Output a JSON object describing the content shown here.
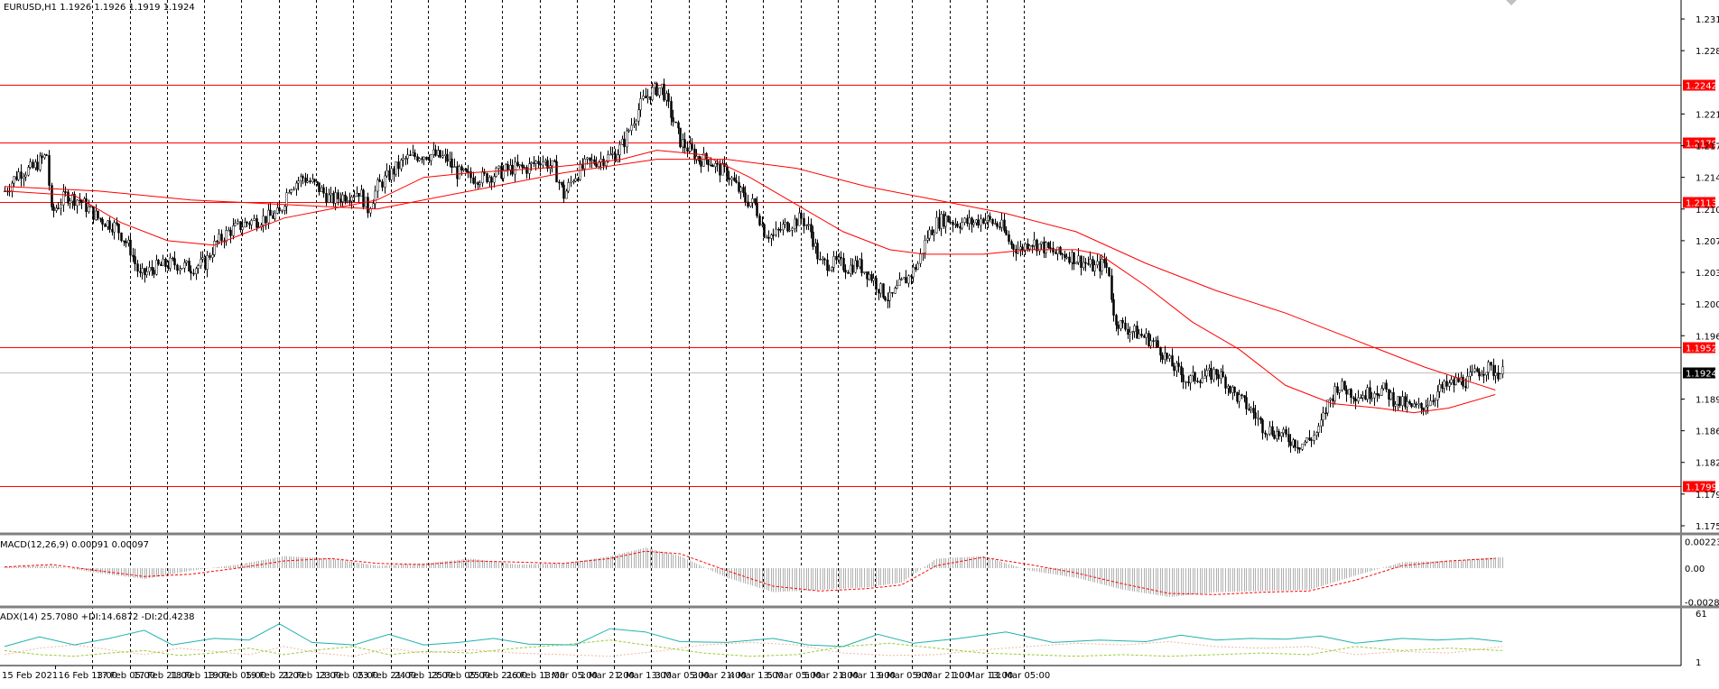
{
  "window": {
    "symbol_header": "EURUSD,H1  1.1926 1.1926 1.1919 1.1924"
  },
  "main_panel": {
    "y_ticks": [
      "1.2315",
      "1.2280",
      "1.2210",
      "1.2175",
      "1.2140",
      "1.2105",
      "1.2070",
      "1.2035",
      "1.2000",
      "1.1965",
      "1.1895",
      "1.1860",
      "1.1825",
      "1.1790",
      "1.1755"
    ],
    "y_tick_values": [
      1.2315,
      1.228,
      1.221,
      1.2175,
      1.214,
      1.2105,
      1.207,
      1.2035,
      1.2,
      1.1965,
      1.1895,
      1.186,
      1.1825,
      1.179,
      1.1755
    ],
    "y_range": [
      1.175,
      1.233
    ],
    "current_price": {
      "label": "1.1924",
      "value": 1.1924,
      "color": "#000000"
    },
    "levels": [
      {
        "label": "1.2242",
        "value": 1.2242
      },
      {
        "label": "1.2179",
        "value": 1.2179
      },
      {
        "label": "1.2113",
        "value": 1.2113
      },
      {
        "label": "1.1952",
        "value": 1.1952
      },
      {
        "label": "1.1799",
        "value": 1.1799
      }
    ],
    "level_color": "#ff0000",
    "candle_color": "#000000",
    "ma_color": "#ff0000"
  },
  "macd_panel": {
    "header": "MACD(12,26,9) 0.00091 0.00097",
    "y_ticks": [
      "0.00223",
      "0.00",
      "-0.00283"
    ],
    "y_tick_values": [
      0.00223,
      0.0,
      -0.00283
    ],
    "y_range": [
      -0.003,
      0.0024
    ]
  },
  "adx_panel": {
    "header": "ADX(14) 25.7080 +DI:14.6872 -DI:20.4238",
    "y_ticks": [
      "61",
      "1"
    ],
    "y_tick_values": [
      61,
      1
    ],
    "y_range": [
      1,
      61
    ],
    "adx_color": "#20b2aa",
    "plus_di_color": "#9acd32",
    "minus_di_color": "#f0b8a0"
  },
  "time_axis": {
    "labels": [
      "15 Feb 2021",
      "16 Feb 13:00",
      "17 Feb 05:00",
      "17 Feb 21:00",
      "18 Feb 13:00",
      "19 Feb 05:00",
      "19 Feb 21:00",
      "22 Feb 13:00",
      "23 Feb 05:00",
      "23 Feb 21:00",
      "24 Feb 13:00",
      "25 Feb 05:00",
      "25 Feb 21:00",
      "26 Feb 13:00",
      "1 Mar 05:00",
      "1 Mar 21:00",
      "2 Mar 13:00",
      "3 Mar 05:00",
      "3 Mar 21:00",
      "4 Mar 13:00",
      "5 Mar 05:00",
      "5 Mar 21:00",
      "8 Mar 13:00",
      "9 Mar 05:00",
      "9 Mar 21:00",
      "10 Mar 13:00",
      "11 Mar 05:00"
    ],
    "bars_per_label": 16
  },
  "chart_data": {
    "type": "candlestick",
    "symbol": "EURUSD",
    "timeframe": "H1",
    "last_ohlc": {
      "open": 1.1926,
      "high": 1.1926,
      "low": 1.1919,
      "close": 1.1924
    },
    "close_path": [
      [
        0,
        1.2125
      ],
      [
        6,
        1.2145
      ],
      [
        12,
        1.215
      ],
      [
        18,
        1.2165
      ],
      [
        20,
        1.21
      ],
      [
        26,
        1.212
      ],
      [
        32,
        1.2115
      ],
      [
        40,
        1.2095
      ],
      [
        48,
        1.2085
      ],
      [
        54,
        1.206
      ],
      [
        58,
        1.203
      ],
      [
        64,
        1.204
      ],
      [
        72,
        1.2045
      ],
      [
        80,
        1.204
      ],
      [
        86,
        1.2045
      ],
      [
        90,
        1.2065
      ],
      [
        96,
        1.208
      ],
      [
        104,
        1.209
      ],
      [
        112,
        1.2095
      ],
      [
        118,
        1.21
      ],
      [
        122,
        1.213
      ],
      [
        128,
        1.214
      ],
      [
        134,
        1.213
      ],
      [
        140,
        1.2115
      ],
      [
        146,
        1.212
      ],
      [
        152,
        1.2125
      ],
      [
        156,
        1.2105
      ],
      [
        160,
        1.213
      ],
      [
        166,
        1.2145
      ],
      [
        172,
        1.216
      ],
      [
        178,
        1.2165
      ],
      [
        184,
        1.2165
      ],
      [
        190,
        1.216
      ],
      [
        194,
        1.2145
      ],
      [
        200,
        1.214
      ],
      [
        206,
        1.214
      ],
      [
        212,
        1.2145
      ],
      [
        218,
        1.215
      ],
      [
        224,
        1.215
      ],
      [
        230,
        1.216
      ],
      [
        236,
        1.215
      ],
      [
        240,
        1.212
      ],
      [
        244,
        1.214
      ],
      [
        250,
        1.2155
      ],
      [
        256,
        1.216
      ],
      [
        262,
        1.2165
      ],
      [
        266,
        1.218
      ],
      [
        270,
        1.2205
      ],
      [
        274,
        1.2225
      ],
      [
        278,
        1.2235
      ],
      [
        282,
        1.224
      ],
      [
        286,
        1.221
      ],
      [
        290,
        1.218
      ],
      [
        294,
        1.217
      ],
      [
        298,
        1.216
      ],
      [
        302,
        1.216
      ],
      [
        306,
        1.215
      ],
      [
        310,
        1.2145
      ],
      [
        314,
        1.213
      ],
      [
        318,
        1.2115
      ],
      [
        322,
        1.211
      ],
      [
        326,
        1.208
      ],
      [
        330,
        1.2075
      ],
      [
        334,
        1.2085
      ],
      [
        338,
        1.209
      ],
      [
        342,
        1.2095
      ],
      [
        346,
        1.208
      ],
      [
        350,
        1.2045
      ],
      [
        354,
        1.2045
      ],
      [
        358,
        1.2045
      ],
      [
        362,
        1.204
      ],
      [
        366,
        1.2045
      ],
      [
        372,
        1.203
      ],
      [
        376,
        1.2015
      ],
      [
        380,
        1.2005
      ],
      [
        384,
        1.202
      ],
      [
        388,
        1.203
      ],
      [
        392,
        1.2045
      ],
      [
        396,
        1.2075
      ],
      [
        400,
        1.209
      ],
      [
        404,
        1.2095
      ],
      [
        408,
        1.209
      ],
      [
        412,
        1.209
      ],
      [
        416,
        1.209
      ],
      [
        420,
        1.2095
      ],
      [
        424,
        1.209
      ],
      [
        428,
        1.2085
      ],
      [
        432,
        1.2065
      ],
      [
        436,
        1.206
      ],
      [
        440,
        1.207
      ],
      [
        444,
        1.2065
      ],
      [
        448,
        1.206
      ],
      [
        452,
        1.2055
      ],
      [
        456,
        1.2055
      ],
      [
        460,
        1.205
      ],
      [
        464,
        1.2045
      ],
      [
        468,
        1.204
      ],
      [
        472,
        1.2045
      ],
      [
        474,
        1.2035
      ],
      [
        476,
        1.1985
      ],
      [
        480,
        1.1975
      ],
      [
        484,
        1.197
      ],
      [
        488,
        1.1965
      ],
      [
        492,
        1.196
      ],
      [
        496,
        1.195
      ],
      [
        500,
        1.1935
      ],
      [
        504,
        1.1925
      ],
      [
        508,
        1.1915
      ],
      [
        512,
        1.192
      ],
      [
        516,
        1.192
      ],
      [
        520,
        1.1925
      ],
      [
        524,
        1.1915
      ],
      [
        528,
        1.19
      ],
      [
        532,
        1.189
      ],
      [
        536,
        1.188
      ],
      [
        540,
        1.1865
      ],
      [
        544,
        1.186
      ],
      [
        548,
        1.1855
      ],
      [
        552,
        1.185
      ],
      [
        556,
        1.1845
      ],
      [
        560,
        1.185
      ],
      [
        564,
        1.186
      ],
      [
        568,
        1.189
      ],
      [
        572,
        1.191
      ],
      [
        576,
        1.1905
      ],
      [
        580,
        1.19
      ],
      [
        584,
        1.19
      ],
      [
        588,
        1.1905
      ],
      [
        592,
        1.1905
      ],
      [
        596,
        1.1895
      ],
      [
        600,
        1.189
      ],
      [
        604,
        1.1885
      ],
      [
        608,
        1.1885
      ],
      [
        612,
        1.1895
      ],
      [
        616,
        1.1905
      ],
      [
        620,
        1.191
      ],
      [
        624,
        1.1915
      ],
      [
        628,
        1.1915
      ],
      [
        632,
        1.1925
      ],
      [
        636,
        1.193
      ],
      [
        640,
        1.1925
      ],
      [
        643,
        1.1924
      ]
    ],
    "ma_fast_path": [
      [
        0,
        1.2125
      ],
      [
        30,
        1.212
      ],
      [
        50,
        1.209
      ],
      [
        70,
        1.207
      ],
      [
        90,
        1.2065
      ],
      [
        100,
        1.2075
      ],
      [
        120,
        1.2095
      ],
      [
        140,
        1.2105
      ],
      [
        160,
        1.2115
      ],
      [
        180,
        1.214
      ],
      [
        200,
        1.2145
      ],
      [
        230,
        1.215
      ],
      [
        250,
        1.2155
      ],
      [
        265,
        1.216
      ],
      [
        280,
        1.217
      ],
      [
        300,
        1.2165
      ],
      [
        320,
        1.214
      ],
      [
        340,
        1.211
      ],
      [
        360,
        1.208
      ],
      [
        380,
        1.206
      ],
      [
        395,
        1.2055
      ],
      [
        420,
        1.2055
      ],
      [
        440,
        1.206
      ],
      [
        460,
        1.206
      ],
      [
        470,
        1.2055
      ],
      [
        490,
        1.202
      ],
      [
        510,
        1.198
      ],
      [
        530,
        1.195
      ],
      [
        550,
        1.191
      ],
      [
        570,
        1.189
      ],
      [
        590,
        1.1885
      ],
      [
        605,
        1.188
      ],
      [
        620,
        1.1885
      ],
      [
        640,
        1.19
      ]
    ],
    "ma_slow_path": [
      [
        0,
        1.213
      ],
      [
        40,
        1.2125
      ],
      [
        80,
        1.2115
      ],
      [
        120,
        1.211
      ],
      [
        160,
        1.2105
      ],
      [
        200,
        1.2125
      ],
      [
        240,
        1.2145
      ],
      [
        280,
        1.216
      ],
      [
        310,
        1.216
      ],
      [
        340,
        1.215
      ],
      [
        370,
        1.213
      ],
      [
        400,
        1.2115
      ],
      [
        430,
        1.21
      ],
      [
        460,
        1.208
      ],
      [
        490,
        1.2045
      ],
      [
        520,
        1.2015
      ],
      [
        550,
        1.199
      ],
      [
        580,
        1.196
      ],
      [
        610,
        1.193
      ],
      [
        640,
        1.1905
      ]
    ],
    "macd_path": [
      [
        0,
        0.0001
      ],
      [
        20,
        0.0002
      ],
      [
        40,
        -0.0004
      ],
      [
        60,
        -0.0009
      ],
      [
        80,
        -0.0002
      ],
      [
        100,
        0.0003
      ],
      [
        120,
        0.001
      ],
      [
        140,
        0.0008
      ],
      [
        160,
        0.0002
      ],
      [
        180,
        0.0004
      ],
      [
        200,
        0.0008
      ],
      [
        220,
        0.0003
      ],
      [
        240,
        0.0004
      ],
      [
        260,
        0.001
      ],
      [
        275,
        0.0017
      ],
      [
        290,
        0.001
      ],
      [
        310,
        -0.0008
      ],
      [
        330,
        -0.002
      ],
      [
        350,
        -0.0018
      ],
      [
        370,
        -0.0016
      ],
      [
        385,
        -0.0012
      ],
      [
        400,
        0.0008
      ],
      [
        420,
        0.001
      ],
      [
        440,
        -0.0002
      ],
      [
        460,
        -0.0008
      ],
      [
        480,
        -0.0018
      ],
      [
        500,
        -0.0024
      ],
      [
        520,
        -0.002
      ],
      [
        540,
        -0.0019
      ],
      [
        560,
        -0.0018
      ],
      [
        580,
        -0.0006
      ],
      [
        600,
        0.0005
      ],
      [
        620,
        0.0006
      ],
      [
        640,
        0.0009
      ]
    ],
    "macd_signal_path": [
      [
        0,
        0.0001
      ],
      [
        20,
        0.0003
      ],
      [
        40,
        -0.0002
      ],
      [
        60,
        -0.0007
      ],
      [
        80,
        -0.0005
      ],
      [
        100,
        0.0
      ],
      [
        120,
        0.0006
      ],
      [
        140,
        0.0008
      ],
      [
        160,
        0.0004
      ],
      [
        180,
        0.0003
      ],
      [
        200,
        0.0006
      ],
      [
        220,
        0.0005
      ],
      [
        240,
        0.0004
      ],
      [
        260,
        0.0008
      ],
      [
        275,
        0.0014
      ],
      [
        290,
        0.0012
      ],
      [
        310,
        -0.0002
      ],
      [
        330,
        -0.0015
      ],
      [
        350,
        -0.0019
      ],
      [
        370,
        -0.0017
      ],
      [
        385,
        -0.0014
      ],
      [
        400,
        0.0002
      ],
      [
        420,
        0.0009
      ],
      [
        440,
        0.0003
      ],
      [
        460,
        -0.0004
      ],
      [
        480,
        -0.0013
      ],
      [
        500,
        -0.0021
      ],
      [
        520,
        -0.0022
      ],
      [
        540,
        -0.002
      ],
      [
        560,
        -0.0019
      ],
      [
        580,
        -0.001
      ],
      [
        600,
        0.0002
      ],
      [
        620,
        0.0006
      ],
      [
        640,
        0.0008
      ]
    ],
    "adx_path": [
      [
        0,
        20
      ],
      [
        15,
        32
      ],
      [
        30,
        22
      ],
      [
        45,
        30
      ],
      [
        60,
        40
      ],
      [
        72,
        22
      ],
      [
        90,
        30
      ],
      [
        105,
        28
      ],
      [
        118,
        48
      ],
      [
        132,
        25
      ],
      [
        150,
        22
      ],
      [
        165,
        35
      ],
      [
        180,
        22
      ],
      [
        195,
        25
      ],
      [
        210,
        30
      ],
      [
        225,
        23
      ],
      [
        245,
        22
      ],
      [
        260,
        42
      ],
      [
        275,
        38
      ],
      [
        290,
        26
      ],
      [
        310,
        25
      ],
      [
        330,
        30
      ],
      [
        345,
        22
      ],
      [
        360,
        20
      ],
      [
        375,
        35
      ],
      [
        390,
        24
      ],
      [
        410,
        30
      ],
      [
        430,
        38
      ],
      [
        450,
        25
      ],
      [
        470,
        28
      ],
      [
        490,
        26
      ],
      [
        505,
        34
      ],
      [
        520,
        28
      ],
      [
        535,
        30
      ],
      [
        550,
        29
      ],
      [
        565,
        33
      ],
      [
        580,
        24
      ],
      [
        600,
        30
      ],
      [
        615,
        28
      ],
      [
        630,
        30
      ],
      [
        643,
        26
      ]
    ],
    "plus_di_path": [
      [
        0,
        15
      ],
      [
        15,
        10
      ],
      [
        30,
        8
      ],
      [
        45,
        12
      ],
      [
        60,
        15
      ],
      [
        75,
        9
      ],
      [
        90,
        12
      ],
      [
        105,
        18
      ],
      [
        120,
        10
      ],
      [
        135,
        16
      ],
      [
        150,
        20
      ],
      [
        165,
        10
      ],
      [
        180,
        14
      ],
      [
        200,
        12
      ],
      [
        220,
        18
      ],
      [
        240,
        22
      ],
      [
        260,
        28
      ],
      [
        280,
        20
      ],
      [
        300,
        12
      ],
      [
        320,
        8
      ],
      [
        340,
        10
      ],
      [
        360,
        20
      ],
      [
        380,
        24
      ],
      [
        400,
        18
      ],
      [
        420,
        12
      ],
      [
        440,
        10
      ],
      [
        460,
        8
      ],
      [
        480,
        10
      ],
      [
        500,
        8
      ],
      [
        520,
        10
      ],
      [
        540,
        12
      ],
      [
        560,
        10
      ],
      [
        580,
        20
      ],
      [
        600,
        15
      ],
      [
        620,
        18
      ],
      [
        643,
        15
      ]
    ],
    "minus_di_path": [
      [
        0,
        10
      ],
      [
        15,
        18
      ],
      [
        30,
        22
      ],
      [
        45,
        16
      ],
      [
        60,
        10
      ],
      [
        75,
        18
      ],
      [
        90,
        14
      ],
      [
        105,
        10
      ],
      [
        120,
        20
      ],
      [
        135,
        12
      ],
      [
        150,
        8
      ],
      [
        165,
        18
      ],
      [
        180,
        12
      ],
      [
        200,
        16
      ],
      [
        220,
        12
      ],
      [
        240,
        10
      ],
      [
        260,
        8
      ],
      [
        280,
        14
      ],
      [
        300,
        22
      ],
      [
        320,
        25
      ],
      [
        340,
        22
      ],
      [
        360,
        12
      ],
      [
        380,
        9
      ],
      [
        400,
        10
      ],
      [
        420,
        16
      ],
      [
        440,
        20
      ],
      [
        460,
        24
      ],
      [
        480,
        22
      ],
      [
        500,
        26
      ],
      [
        520,
        20
      ],
      [
        540,
        18
      ],
      [
        560,
        20
      ],
      [
        580,
        10
      ],
      [
        600,
        14
      ],
      [
        620,
        12
      ],
      [
        643,
        20
      ]
    ]
  }
}
